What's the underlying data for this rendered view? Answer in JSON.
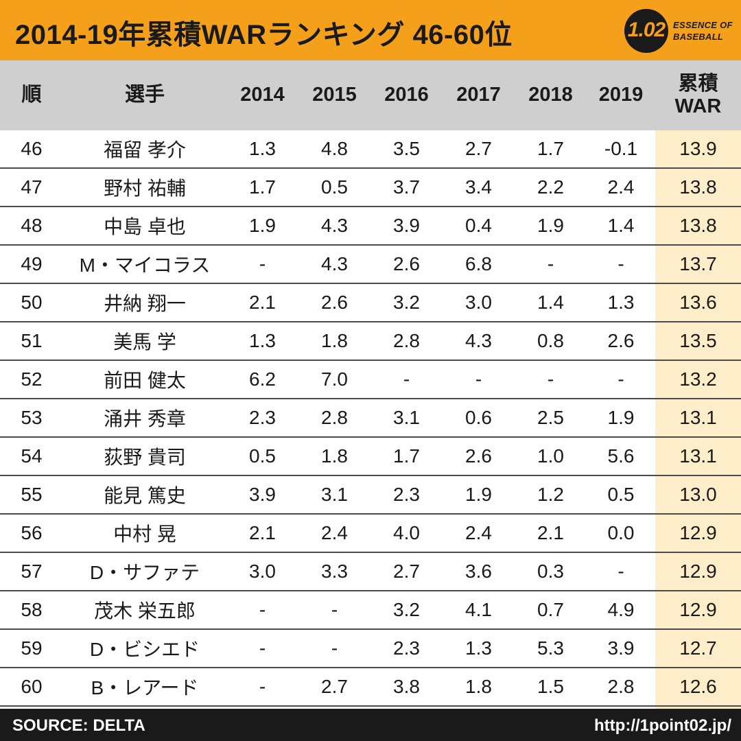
{
  "title": "2014-19年累積WARランキング 46-60位",
  "logo": {
    "number": "1.02",
    "line1": "ESSENCE OF",
    "line2": "BASEBALL"
  },
  "footer": {
    "source": "SOURCE: DELTA",
    "url": "http://1point02.jp/"
  },
  "colors": {
    "accent": "#f5a01a",
    "header_bg": "#cfcfcf",
    "total_bg": "#fdedc8",
    "footer_bg": "#1a1a1a"
  },
  "chart_data": {
    "type": "table",
    "title": "2014-19年累積WARランキング 46-60位",
    "columns": {
      "rank": "順",
      "player": "選手",
      "years": [
        "2014",
        "2015",
        "2016",
        "2017",
        "2018",
        "2019"
      ],
      "total_line1": "累積",
      "total_line2": "WAR"
    },
    "rows": [
      {
        "rank": "46",
        "player": "福留 孝介",
        "values": [
          "1.3",
          "4.8",
          "3.5",
          "2.7",
          "1.7",
          "-0.1"
        ],
        "total": "13.9"
      },
      {
        "rank": "47",
        "player": "野村 祐輔",
        "values": [
          "1.7",
          "0.5",
          "3.7",
          "3.4",
          "2.2",
          "2.4"
        ],
        "total": "13.8"
      },
      {
        "rank": "48",
        "player": "中島 卓也",
        "values": [
          "1.9",
          "4.3",
          "3.9",
          "0.4",
          "1.9",
          "1.4"
        ],
        "total": "13.8"
      },
      {
        "rank": "49",
        "player": "M・マイコラス",
        "values": [
          "-",
          "4.3",
          "2.6",
          "6.8",
          "-",
          "-"
        ],
        "total": "13.7"
      },
      {
        "rank": "50",
        "player": "井納 翔一",
        "values": [
          "2.1",
          "2.6",
          "3.2",
          "3.0",
          "1.4",
          "1.3"
        ],
        "total": "13.6"
      },
      {
        "rank": "51",
        "player": "美馬 学",
        "values": [
          "1.3",
          "1.8",
          "2.8",
          "4.3",
          "0.8",
          "2.6"
        ],
        "total": "13.5"
      },
      {
        "rank": "52",
        "player": "前田 健太",
        "values": [
          "6.2",
          "7.0",
          "-",
          "-",
          "-",
          "-"
        ],
        "total": "13.2"
      },
      {
        "rank": "53",
        "player": "涌井 秀章",
        "values": [
          "2.3",
          "2.8",
          "3.1",
          "0.6",
          "2.5",
          "1.9"
        ],
        "total": "13.1"
      },
      {
        "rank": "54",
        "player": "荻野 貴司",
        "values": [
          "0.5",
          "1.8",
          "1.7",
          "2.6",
          "1.0",
          "5.6"
        ],
        "total": "13.1"
      },
      {
        "rank": "55",
        "player": "能見 篤史",
        "values": [
          "3.9",
          "3.1",
          "2.3",
          "1.9",
          "1.2",
          "0.5"
        ],
        "total": "13.0"
      },
      {
        "rank": "56",
        "player": "中村 晃",
        "values": [
          "2.1",
          "2.4",
          "4.0",
          "2.4",
          "2.1",
          "0.0"
        ],
        "total": "12.9"
      },
      {
        "rank": "57",
        "player": "D・サファテ",
        "values": [
          "3.0",
          "3.3",
          "2.7",
          "3.6",
          "0.3",
          "-"
        ],
        "total": "12.9"
      },
      {
        "rank": "58",
        "player": "茂木 栄五郎",
        "values": [
          "-",
          "-",
          "3.2",
          "4.1",
          "0.7",
          "4.9"
        ],
        "total": "12.9"
      },
      {
        "rank": "59",
        "player": "D・ビシエド",
        "values": [
          "-",
          "-",
          "2.3",
          "1.3",
          "5.3",
          "3.9"
        ],
        "total": "12.7"
      },
      {
        "rank": "60",
        "player": "B・レアード",
        "values": [
          "-",
          "2.7",
          "3.8",
          "1.8",
          "1.5",
          "2.8"
        ],
        "total": "12.6"
      }
    ]
  }
}
